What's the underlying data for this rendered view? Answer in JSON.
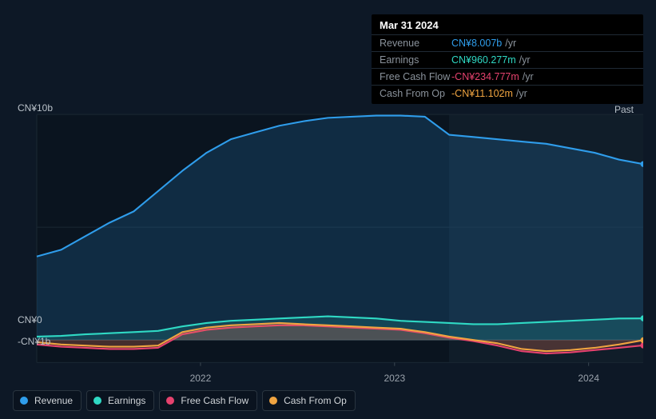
{
  "tooltip": {
    "title": "Mar 31 2024",
    "unit": "/yr",
    "rows": [
      {
        "label": "Revenue",
        "value": "CN¥8.007b",
        "color": "#2f9deb"
      },
      {
        "label": "Earnings",
        "value": "CN¥960.277m",
        "color": "#2fd9c4"
      },
      {
        "label": "Free Cash Flow",
        "value": "-CN¥234.777m",
        "color": "#e6426e"
      },
      {
        "label": "Cash From Op",
        "value": "-CN¥11.102m",
        "color": "#f0a441"
      }
    ]
  },
  "chart": {
    "type": "area",
    "background": "#0d1826",
    "plot_bg_dark": "#09121d",
    "plot_bg_right": "#111e2e",
    "grid_color": "#1a2733",
    "border_color": "#1a2733",
    "past_label": "Past",
    "y_axis": {
      "labels": [
        {
          "text": "CN¥10b",
          "value": 10
        },
        {
          "text": "CN¥0",
          "value": 0
        },
        {
          "text": "-CN¥1b",
          "value": -1
        }
      ],
      "min": -1,
      "max": 10,
      "fontsize": 12,
      "color": "#b8c0c8"
    },
    "x_axis": {
      "labels": [
        "2022",
        "2023",
        "2024"
      ],
      "positions_pct": [
        27,
        59,
        91
      ],
      "fontsize": 12,
      "color": "#9aa2ab"
    },
    "series": [
      {
        "name": "Revenue",
        "color": "#2f9deb",
        "fill": "rgba(47,157,235,0.18)",
        "line_width": 2,
        "values": [
          3.7,
          4.0,
          4.6,
          5.2,
          5.7,
          6.6,
          7.5,
          8.3,
          8.9,
          9.2,
          9.5,
          9.7,
          9.85,
          9.9,
          9.95,
          9.95,
          9.9,
          9.1,
          9.0,
          8.9,
          8.8,
          8.7,
          8.5,
          8.3,
          8.0,
          7.8
        ]
      },
      {
        "name": "Earnings",
        "color": "#2fd9c4",
        "fill": "rgba(47,217,196,0.15)",
        "line_width": 2,
        "values": [
          0.15,
          0.18,
          0.25,
          0.3,
          0.35,
          0.4,
          0.6,
          0.75,
          0.85,
          0.9,
          0.95,
          1.0,
          1.05,
          1.0,
          0.95,
          0.85,
          0.8,
          0.75,
          0.7,
          0.7,
          0.75,
          0.8,
          0.85,
          0.9,
          0.95,
          0.96
        ]
      },
      {
        "name": "Free Cash Flow",
        "color": "#e6426e",
        "fill": "rgba(230,66,110,0.14)",
        "line_width": 2,
        "values": [
          -0.2,
          -0.3,
          -0.35,
          -0.4,
          -0.4,
          -0.35,
          0.25,
          0.45,
          0.55,
          0.6,
          0.65,
          0.65,
          0.6,
          0.55,
          0.5,
          0.45,
          0.3,
          0.1,
          -0.05,
          -0.25,
          -0.5,
          -0.6,
          -0.55,
          -0.45,
          -0.35,
          -0.24
        ]
      },
      {
        "name": "Cash From Op",
        "color": "#f0a441",
        "fill": "rgba(240,164,65,0.14)",
        "line_width": 2,
        "values": [
          -0.1,
          -0.2,
          -0.25,
          -0.3,
          -0.3,
          -0.25,
          0.35,
          0.55,
          0.65,
          0.7,
          0.75,
          0.7,
          0.65,
          0.6,
          0.55,
          0.5,
          0.35,
          0.15,
          0.0,
          -0.15,
          -0.4,
          -0.5,
          -0.45,
          -0.35,
          -0.2,
          -0.01
        ]
      }
    ],
    "end_dot_radius": 3.5,
    "divider_pct": 68
  },
  "legend": {
    "items": [
      {
        "label": "Revenue",
        "color": "#2f9deb"
      },
      {
        "label": "Earnings",
        "color": "#2fd9c4"
      },
      {
        "label": "Free Cash Flow",
        "color": "#e6426e"
      },
      {
        "label": "Cash From Op",
        "color": "#f0a441"
      }
    ],
    "fontsize": 12
  }
}
